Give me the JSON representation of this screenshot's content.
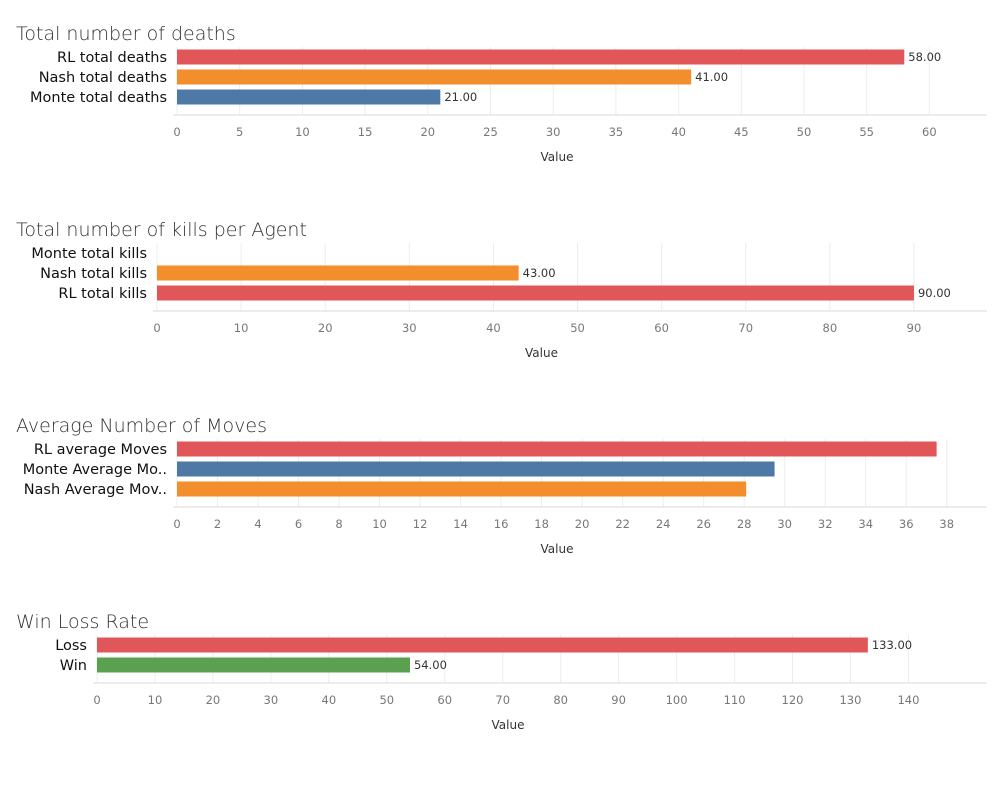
{
  "chart_data": [
    {
      "type": "bar",
      "orientation": "horizontal",
      "title": "Total number of deaths",
      "xlabel": "Value",
      "xlim": [
        0,
        63
      ],
      "ticks": [
        0,
        5,
        10,
        15,
        20,
        25,
        30,
        35,
        40,
        45,
        50,
        55,
        60
      ],
      "tick_labels": [
        "0",
        "5",
        "10",
        "15",
        "20",
        "25",
        "30",
        "35",
        "40",
        "45",
        "50",
        "55",
        "60"
      ],
      "grid": true,
      "categories": [
        "RL total deaths",
        "Nash total deaths",
        "Monte total deaths"
      ],
      "values": [
        58,
        41,
        21
      ],
      "value_labels": [
        "58.00",
        "41.00",
        "21.00"
      ],
      "colors": [
        "#e15759",
        "#f28e2b",
        "#4e79a7"
      ]
    },
    {
      "type": "bar",
      "orientation": "horizontal",
      "title": "Total number of kills per Agent",
      "xlabel": "Value",
      "xlim": [
        0,
        95
      ],
      "ticks": [
        0,
        10,
        20,
        30,
        40,
        50,
        60,
        70,
        80,
        90
      ],
      "tick_labels": [
        "0",
        "10",
        "20",
        "30",
        "40",
        "50",
        "60",
        "70",
        "80",
        "90"
      ],
      "grid": true,
      "categories": [
        "Monte total kills",
        "Nash total kills",
        "RL total kills"
      ],
      "values": [
        0,
        43,
        90
      ],
      "value_labels": [
        "",
        "43.00",
        "90.00"
      ],
      "colors": [
        "#4e79a7",
        "#f28e2b",
        "#e15759"
      ]
    },
    {
      "type": "bar",
      "orientation": "horizontal",
      "title": "Average Number of Moves",
      "xlabel": "Value",
      "xlim": [
        0,
        39
      ],
      "ticks": [
        0,
        2,
        4,
        6,
        8,
        10,
        12,
        14,
        16,
        18,
        20,
        22,
        24,
        26,
        28,
        30,
        32,
        34,
        36,
        38
      ],
      "tick_labels": [
        "0",
        "2",
        "4",
        "6",
        "8",
        "10",
        "12",
        "14",
        "16",
        "18",
        "20",
        "22",
        "24",
        "26",
        "28",
        "30",
        "32",
        "34",
        "36",
        "38"
      ],
      "grid": true,
      "categories": [
        "RL average Moves",
        "Monte Average Mo..",
        "Nash Average Mov.."
      ],
      "values": [
        37.5,
        29.5,
        28.1
      ],
      "value_labels": [
        "",
        "",
        ""
      ],
      "colors": [
        "#e15759",
        "#4e79a7",
        "#f28e2b"
      ]
    },
    {
      "type": "bar",
      "orientation": "horizontal",
      "title": "Win Loss Rate",
      "xlabel": "Value",
      "xlim": [
        0,
        147
      ],
      "ticks": [
        0,
        10,
        20,
        30,
        40,
        50,
        60,
        70,
        80,
        90,
        100,
        110,
        120,
        130,
        140
      ],
      "tick_labels": [
        "0",
        "10",
        "20",
        "30",
        "40",
        "50",
        "60",
        "70",
        "80",
        "90",
        "100",
        "110",
        "120",
        "130",
        "140"
      ],
      "grid": true,
      "categories": [
        "Loss",
        "Win"
      ],
      "values": [
        133,
        54
      ],
      "value_labels": [
        "133.00",
        "54.00"
      ],
      "colors": [
        "#e15759",
        "#59a14f"
      ]
    }
  ]
}
